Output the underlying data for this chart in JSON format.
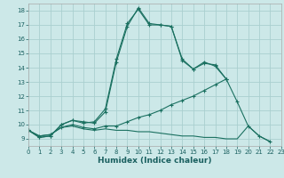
{
  "title": "",
  "xlabel": "Humidex (Indice chaleur)",
  "xlim": [
    0,
    23
  ],
  "ylim": [
    8.5,
    18.5
  ],
  "xticks": [
    0,
    1,
    2,
    3,
    4,
    5,
    6,
    7,
    8,
    9,
    10,
    11,
    12,
    13,
    14,
    15,
    16,
    17,
    18,
    19,
    20,
    21,
    22,
    23
  ],
  "yticks": [
    9,
    10,
    11,
    12,
    13,
    14,
    15,
    16,
    17,
    18
  ],
  "bg_color": "#cce8e8",
  "grid_color": "#aacfcf",
  "line_color": "#1a7060",
  "lines": [
    {
      "x": [
        0,
        1,
        2,
        3,
        4,
        5,
        6,
        7,
        8,
        9,
        10,
        11,
        12,
        13,
        14,
        15,
        16,
        17,
        18
      ],
      "y": [
        9.6,
        9.1,
        9.2,
        10.0,
        10.3,
        10.1,
        10.2,
        11.1,
        14.6,
        17.1,
        18.1,
        17.0,
        17.0,
        16.9,
        14.6,
        13.9,
        14.3,
        14.2,
        13.2
      ],
      "marker": true
    },
    {
      "x": [
        0,
        1,
        2,
        3,
        4,
        5,
        6,
        7,
        8,
        9,
        10,
        11,
        12,
        13,
        14,
        15,
        16,
        17,
        18
      ],
      "y": [
        9.6,
        9.1,
        9.2,
        10.0,
        10.3,
        10.2,
        10.1,
        10.9,
        14.4,
        16.9,
        18.2,
        17.1,
        17.0,
        16.9,
        14.5,
        13.9,
        14.4,
        14.1,
        13.2
      ],
      "marker": true
    },
    {
      "x": [
        0,
        1,
        2,
        3,
        4,
        5,
        6,
        7,
        8,
        9,
        10,
        11,
        12,
        13,
        14,
        15,
        16,
        17,
        18,
        19,
        20,
        21,
        22
      ],
      "y": [
        9.6,
        9.2,
        9.3,
        9.8,
        10.0,
        9.8,
        9.7,
        9.9,
        9.9,
        10.2,
        10.5,
        10.7,
        11.0,
        11.4,
        11.7,
        12.0,
        12.4,
        12.8,
        13.2,
        11.6,
        9.9,
        9.2,
        8.8
      ],
      "marker": true
    },
    {
      "x": [
        0,
        1,
        2,
        3,
        4,
        5,
        6,
        7,
        8,
        9,
        10,
        11,
        12,
        13,
        14,
        15,
        16,
        17,
        18,
        19,
        20,
        21,
        22
      ],
      "y": [
        9.6,
        9.2,
        9.3,
        9.8,
        9.9,
        9.7,
        9.6,
        9.7,
        9.6,
        9.6,
        9.5,
        9.5,
        9.4,
        9.3,
        9.2,
        9.2,
        9.1,
        9.1,
        9.0,
        9.0,
        9.9,
        9.2,
        8.8
      ],
      "marker": false
    }
  ]
}
